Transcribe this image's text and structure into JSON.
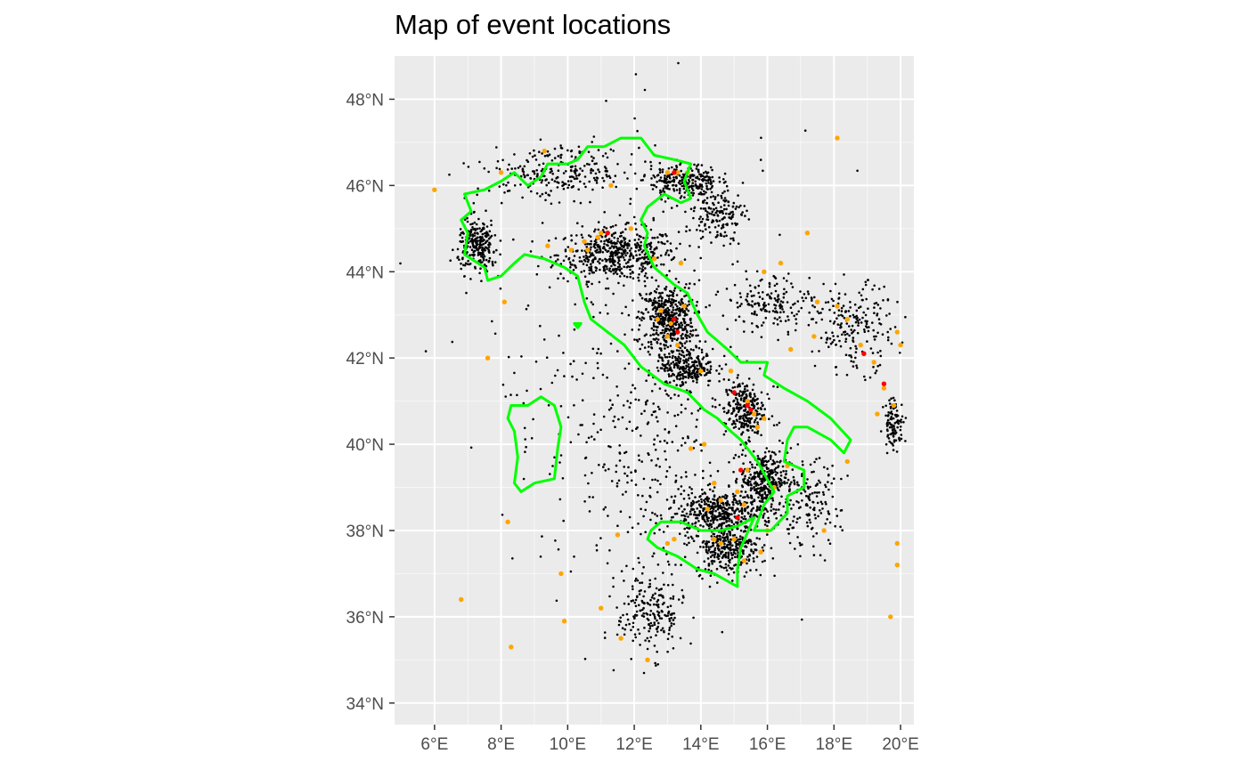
{
  "title": "Map of event locations",
  "colors": {
    "panel": "#ebebeb",
    "grid": "#ffffff",
    "border": "#00ff00",
    "minor_event": "#000000",
    "moderate_event": "#ffa500",
    "major_event": "#ff0000",
    "tick_text": "#4d4d4d"
  },
  "chart_data": {
    "type": "scatter",
    "projection": "lon/lat map",
    "xlim": [
      4.8,
      20.4
    ],
    "ylim": [
      33.5,
      49.0
    ],
    "x_ticks": [
      {
        "value": 6,
        "label": "6°E"
      },
      {
        "value": 8,
        "label": "8°E"
      },
      {
        "value": 10,
        "label": "10°E"
      },
      {
        "value": 12,
        "label": "12°E"
      },
      {
        "value": 14,
        "label": "14°E"
      },
      {
        "value": 16,
        "label": "16°E"
      },
      {
        "value": 18,
        "label": "18°E"
      },
      {
        "value": 20,
        "label": "20°E"
      }
    ],
    "y_ticks": [
      {
        "value": 34,
        "label": "34°N"
      },
      {
        "value": 36,
        "label": "36°N"
      },
      {
        "value": 38,
        "label": "38°N"
      },
      {
        "value": 40,
        "label": "40°N"
      },
      {
        "value": 42,
        "label": "42°N"
      },
      {
        "value": 44,
        "label": "44°N"
      },
      {
        "value": 46,
        "label": "46°N"
      },
      {
        "value": 48,
        "label": "48°N"
      }
    ],
    "grid": true,
    "legend": "none",
    "outlines": [
      {
        "color": "#00ff00",
        "lonlat": [
          [
            7.6,
            43.8
          ],
          [
            7.5,
            44.1
          ],
          [
            6.9,
            44.4
          ],
          [
            7.0,
            44.9
          ],
          [
            6.8,
            45.2
          ],
          [
            7.1,
            45.4
          ],
          [
            6.9,
            45.8
          ],
          [
            7.5,
            45.9
          ],
          [
            8.0,
            46.1
          ],
          [
            8.4,
            46.3
          ],
          [
            8.8,
            46.0
          ],
          [
            9.2,
            46.2
          ],
          [
            9.4,
            46.5
          ],
          [
            10.0,
            46.5
          ],
          [
            10.3,
            46.6
          ],
          [
            10.6,
            46.9
          ],
          [
            11.1,
            46.9
          ],
          [
            11.6,
            47.1
          ],
          [
            12.2,
            47.1
          ],
          [
            12.6,
            46.7
          ],
          [
            13.2,
            46.6
          ],
          [
            13.7,
            46.5
          ],
          [
            13.5,
            46.1
          ],
          [
            13.7,
            45.7
          ],
          [
            13.4,
            45.6
          ],
          [
            12.9,
            45.8
          ],
          [
            12.4,
            45.5
          ],
          [
            12.2,
            45.2
          ],
          [
            12.4,
            44.9
          ],
          [
            12.3,
            44.6
          ],
          [
            12.6,
            44.1
          ],
          [
            13.2,
            43.7
          ],
          [
            13.6,
            43.5
          ],
          [
            13.9,
            43.0
          ],
          [
            14.2,
            42.6
          ],
          [
            14.8,
            42.2
          ],
          [
            15.2,
            41.9
          ],
          [
            16.0,
            41.9
          ],
          [
            15.9,
            41.6
          ],
          [
            16.5,
            41.3
          ],
          [
            17.2,
            41.0
          ],
          [
            17.9,
            40.6
          ],
          [
            18.5,
            40.1
          ],
          [
            18.3,
            39.8
          ],
          [
            17.9,
            40.1
          ],
          [
            17.2,
            40.4
          ],
          [
            16.8,
            40.4
          ],
          [
            16.6,
            40.1
          ],
          [
            16.5,
            39.6
          ],
          [
            17.1,
            39.4
          ],
          [
            17.1,
            39.0
          ],
          [
            16.6,
            38.8
          ],
          [
            16.6,
            38.4
          ],
          [
            16.1,
            38.0
          ],
          [
            15.6,
            38.0
          ],
          [
            15.9,
            38.6
          ],
          [
            16.2,
            38.9
          ],
          [
            15.7,
            39.6
          ],
          [
            15.2,
            40.1
          ],
          [
            14.9,
            40.3
          ],
          [
            14.5,
            40.6
          ],
          [
            14.1,
            40.8
          ],
          [
            13.6,
            41.2
          ],
          [
            12.9,
            41.4
          ],
          [
            12.2,
            41.8
          ],
          [
            11.7,
            42.3
          ],
          [
            11.2,
            42.6
          ],
          [
            10.7,
            42.9
          ],
          [
            10.5,
            43.3
          ],
          [
            10.3,
            43.9
          ],
          [
            9.9,
            44.1
          ],
          [
            9.3,
            44.3
          ],
          [
            8.7,
            44.4
          ],
          [
            8.4,
            44.2
          ],
          [
            8.0,
            43.9
          ],
          [
            7.6,
            43.8
          ]
        ]
      },
      {
        "color": "#00ff00",
        "lonlat": [
          [
            15.6,
            38.3
          ],
          [
            15.1,
            38.1
          ],
          [
            14.6,
            38.0
          ],
          [
            14.0,
            38.0
          ],
          [
            13.4,
            38.2
          ],
          [
            12.8,
            38.2
          ],
          [
            12.5,
            38.0
          ],
          [
            12.4,
            37.8
          ],
          [
            12.7,
            37.6
          ],
          [
            13.3,
            37.4
          ],
          [
            13.9,
            37.1
          ],
          [
            14.4,
            37.0
          ],
          [
            15.1,
            36.7
          ],
          [
            15.1,
            37.1
          ],
          [
            15.2,
            37.6
          ],
          [
            15.6,
            38.3
          ]
        ]
      },
      {
        "color": "#00ff00",
        "lonlat": [
          [
            9.2,
            41.1
          ],
          [
            9.6,
            40.9
          ],
          [
            9.8,
            40.4
          ],
          [
            9.7,
            39.9
          ],
          [
            9.6,
            39.2
          ],
          [
            9.0,
            39.1
          ],
          [
            8.6,
            38.9
          ],
          [
            8.4,
            39.1
          ],
          [
            8.5,
            39.7
          ],
          [
            8.4,
            40.3
          ],
          [
            8.2,
            40.6
          ],
          [
            8.3,
            40.9
          ],
          [
            8.8,
            40.9
          ],
          [
            9.2,
            41.1
          ]
        ]
      },
      {
        "color": "#00ff00",
        "lonlat": [
          [
            10.2,
            42.8
          ],
          [
            10.4,
            42.8
          ],
          [
            10.3,
            42.7
          ],
          [
            10.2,
            42.8
          ]
        ]
      }
    ],
    "series": [
      {
        "name": "",
        "color": "#000000",
        "marker_size": "small",
        "clusters": [
          {
            "lon": 11.5,
            "lat": 44.4,
            "spread_lon": 1.8,
            "spread_lat": 0.6,
            "count": 500
          },
          {
            "lon": 13.0,
            "lat": 42.9,
            "spread_lon": 0.8,
            "spread_lat": 0.8,
            "count": 450
          },
          {
            "lon": 14.6,
            "lat": 38.4,
            "spread_lon": 1.6,
            "spread_lat": 0.5,
            "count": 450
          },
          {
            "lon": 15.9,
            "lat": 39.2,
            "spread_lon": 0.7,
            "spread_lat": 0.6,
            "count": 300
          },
          {
            "lon": 14.8,
            "lat": 37.6,
            "spread_lon": 1.0,
            "spread_lat": 0.6,
            "count": 300
          },
          {
            "lon": 15.3,
            "lat": 40.8,
            "spread_lon": 0.6,
            "spread_lat": 0.7,
            "count": 250
          },
          {
            "lon": 13.6,
            "lat": 41.8,
            "spread_lon": 0.8,
            "spread_lat": 0.4,
            "count": 250
          },
          {
            "lon": 13.5,
            "lat": 46.1,
            "spread_lon": 1.0,
            "spread_lat": 0.4,
            "count": 250
          },
          {
            "lon": 7.3,
            "lat": 44.6,
            "spread_lon": 0.6,
            "spread_lat": 0.6,
            "count": 250
          },
          {
            "lon": 9.8,
            "lat": 46.3,
            "spread_lon": 2.4,
            "spread_lat": 0.6,
            "count": 250
          },
          {
            "lon": 12.5,
            "lat": 36.1,
            "spread_lon": 1.0,
            "spread_lat": 1.0,
            "count": 200
          },
          {
            "lon": 18.6,
            "lat": 42.7,
            "spread_lon": 1.2,
            "spread_lat": 1.0,
            "count": 200
          },
          {
            "lon": 19.8,
            "lat": 40.5,
            "spread_lon": 0.3,
            "spread_lat": 0.6,
            "count": 100
          },
          {
            "lon": 16.2,
            "lat": 43.3,
            "spread_lon": 1.2,
            "spread_lat": 0.6,
            "count": 150
          },
          {
            "lon": 14.5,
            "lat": 45.3,
            "spread_lon": 0.8,
            "spread_lat": 0.6,
            "count": 150
          },
          {
            "lon": 17.2,
            "lat": 38.6,
            "spread_lon": 1.0,
            "spread_lat": 1.0,
            "count": 150
          },
          {
            "lon": 12.5,
            "lat": 40.0,
            "spread_lon": 3.5,
            "spread_lat": 3.0,
            "count": 250
          },
          {
            "lon": 12.5,
            "lat": 42.0,
            "spread_lon": 5.0,
            "spread_lat": 5.0,
            "count": 250
          }
        ]
      },
      {
        "name": "",
        "color": "#ffa500",
        "marker_size": "medium",
        "points": [
          [
            6.0,
            45.9
          ],
          [
            9.3,
            46.8
          ],
          [
            8.0,
            46.3
          ],
          [
            11.3,
            46.0
          ],
          [
            11.9,
            45.0
          ],
          [
            13.0,
            46.3
          ],
          [
            13.3,
            46.3
          ],
          [
            13.6,
            46.3
          ],
          [
            10.5,
            44.7
          ],
          [
            10.6,
            44.5
          ],
          [
            10.9,
            44.8
          ],
          [
            11.0,
            44.9
          ],
          [
            9.4,
            44.6
          ],
          [
            10.1,
            44.5
          ],
          [
            12.6,
            44.3
          ],
          [
            13.4,
            44.2
          ],
          [
            12.8,
            43.1
          ],
          [
            13.1,
            42.8
          ],
          [
            13.0,
            42.5
          ],
          [
            13.3,
            42.3
          ],
          [
            12.7,
            42.9
          ],
          [
            13.5,
            43.2
          ],
          [
            14.0,
            41.7
          ],
          [
            14.9,
            41.7
          ],
          [
            15.4,
            41.0
          ],
          [
            15.6,
            40.7
          ],
          [
            15.9,
            40.6
          ],
          [
            15.7,
            40.4
          ],
          [
            14.1,
            40.0
          ],
          [
            13.7,
            39.9
          ],
          [
            15.4,
            39.4
          ],
          [
            14.4,
            39.1
          ],
          [
            15.1,
            38.9
          ],
          [
            14.6,
            38.7
          ],
          [
            14.2,
            38.5
          ],
          [
            15.3,
            38.6
          ],
          [
            13.2,
            37.8
          ],
          [
            13.0,
            37.7
          ],
          [
            14.4,
            37.8
          ],
          [
            14.6,
            37.7
          ],
          [
            15.0,
            37.8
          ],
          [
            15.8,
            37.5
          ],
          [
            16.0,
            38.0
          ],
          [
            15.3,
            37.3
          ],
          [
            17.2,
            44.9
          ],
          [
            15.9,
            44.0
          ],
          [
            16.4,
            44.2
          ],
          [
            17.5,
            43.3
          ],
          [
            18.1,
            43.2
          ],
          [
            18.4,
            42.9
          ],
          [
            18.8,
            42.3
          ],
          [
            19.2,
            41.9
          ],
          [
            19.5,
            41.3
          ],
          [
            19.8,
            40.9
          ],
          [
            19.9,
            42.6
          ],
          [
            20.0,
            42.3
          ],
          [
            19.3,
            40.7
          ],
          [
            18.4,
            39.6
          ],
          [
            17.7,
            38.0
          ],
          [
            19.9,
            37.7
          ],
          [
            19.9,
            37.2
          ],
          [
            19.7,
            36.0
          ],
          [
            18.1,
            47.1
          ],
          [
            8.2,
            38.2
          ],
          [
            9.8,
            37.0
          ],
          [
            9.9,
            35.9
          ],
          [
            11.0,
            36.2
          ],
          [
            11.6,
            35.5
          ],
          [
            12.4,
            35.0
          ],
          [
            8.3,
            35.3
          ],
          [
            6.8,
            36.4
          ],
          [
            7.6,
            42.0
          ],
          [
            8.1,
            43.3
          ],
          [
            11.5,
            37.9
          ],
          [
            16.2,
            39.0
          ],
          [
            16.6,
            39.5
          ],
          [
            17.4,
            42.5
          ],
          [
            16.7,
            42.2
          ]
        ]
      },
      {
        "name": "",
        "color": "#ff0000",
        "marker_size": "medium",
        "points": [
          [
            11.2,
            44.9
          ],
          [
            13.2,
            46.3
          ],
          [
            13.2,
            42.9
          ],
          [
            13.3,
            42.6
          ],
          [
            15.0,
            41.2
          ],
          [
            15.4,
            40.9
          ],
          [
            15.5,
            40.8
          ],
          [
            15.2,
            39.4
          ],
          [
            15.1,
            38.3
          ],
          [
            18.9,
            42.1
          ],
          [
            19.5,
            41.4
          ]
        ]
      }
    ]
  }
}
